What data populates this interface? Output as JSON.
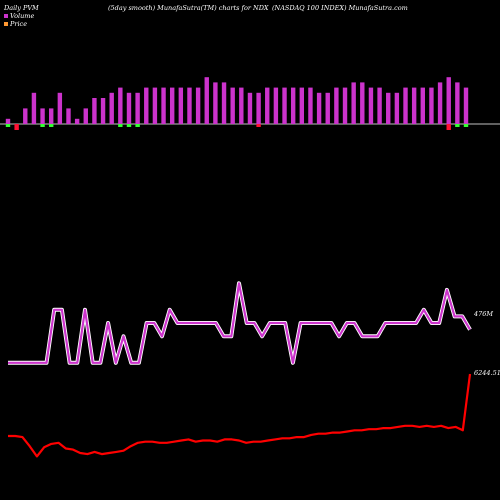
{
  "header": {
    "left": "Daily PVM",
    "middle": "(5day smooth) MunafaSutra(TM) charts for NDX",
    "right": "(NASDAQ 100  INDEX) MunafaSutra.com"
  },
  "legend": [
    {
      "label": "Volume",
      "color": "#cc33cc"
    },
    {
      "label": "Price",
      "color": "#ff9933"
    }
  ],
  "colors": {
    "background": "#000000",
    "volume_up": "#cc33cc",
    "volume_down": "#ff1133",
    "pvm_up": "#cc33cc",
    "pvm_down": "#33ff33",
    "price_line": "#ff0000",
    "zero_line": "#ffffff"
  },
  "chart_data": [
    {
      "type": "bar",
      "title": "PVM",
      "note": "5day smooth, positive bars above the zero line, negative below",
      "values_up": [
        1,
        0,
        3,
        6,
        3,
        3,
        6,
        3,
        1,
        3,
        5,
        5,
        6,
        7,
        6,
        6,
        7,
        7,
        7,
        7,
        7,
        7,
        7,
        9,
        8,
        8,
        7,
        7,
        6,
        6,
        7,
        7,
        7,
        7,
        7,
        7,
        6,
        6,
        7,
        7,
        8,
        8,
        7,
        7,
        6,
        6,
        7,
        7,
        7,
        7,
        8,
        9,
        8,
        7
      ],
      "values_down": [
        1,
        2,
        0,
        0,
        1,
        1,
        0,
        0,
        0,
        0,
        0,
        0,
        0,
        1,
        1,
        1,
        0,
        0,
        0,
        0,
        0,
        0,
        0,
        0,
        0,
        0,
        0,
        0,
        0,
        1,
        0,
        0,
        0,
        0,
        0,
        0,
        0,
        0,
        0,
        0,
        0,
        0,
        0,
        0,
        0,
        0,
        0,
        0,
        0,
        0,
        0,
        2,
        1,
        1
      ],
      "down_colors": [
        "#33ff33",
        "#ff1133",
        "#33ff33",
        "#33ff33",
        "#33ff33",
        "#33ff33",
        "#33ff33",
        "#33ff33",
        "#33ff33",
        "#33ff33",
        "#33ff33",
        "#33ff33",
        "#33ff33",
        "#33ff33",
        "#33ff33",
        "#33ff33",
        "#33ff33",
        "#33ff33",
        "#33ff33",
        "#33ff33",
        "#33ff33",
        "#33ff33",
        "#33ff33",
        "#33ff33",
        "#33ff33",
        "#33ff33",
        "#33ff33",
        "#33ff33",
        "#33ff33",
        "#ff1133",
        "#33ff33",
        "#33ff33",
        "#33ff33",
        "#33ff33",
        "#33ff33",
        "#33ff33",
        "#33ff33",
        "#33ff33",
        "#33ff33",
        "#33ff33",
        "#33ff33",
        "#33ff33",
        "#33ff33",
        "#33ff33",
        "#33ff33",
        "#33ff33",
        "#33ff33",
        "#33ff33",
        "#33ff33",
        "#33ff33",
        "#33ff33",
        "#ff1133",
        "#33ff33",
        "#33ff33"
      ]
    },
    {
      "type": "line",
      "title": "Volume",
      "end_label": "476M",
      "values": [
        1,
        1,
        1,
        1,
        1,
        1,
        5,
        5,
        1,
        1,
        5,
        1,
        1,
        4,
        1,
        3,
        1,
        1,
        4,
        4,
        3,
        5,
        4,
        4,
        4,
        4,
        4,
        4,
        3,
        3,
        7,
        4,
        4,
        3,
        4,
        4,
        4,
        1,
        4,
        4,
        4,
        4,
        4,
        3,
        4,
        4,
        3,
        3,
        3,
        4,
        4,
        4,
        4,
        4,
        5,
        4,
        4,
        6.5,
        4.5,
        4.5,
        3.5
      ],
      "ylim": [
        0,
        8
      ]
    },
    {
      "type": "line",
      "title": "Price",
      "end_label": "6244.51",
      "values": [
        5200,
        5200,
        5190,
        5110,
        5020,
        5100,
        5130,
        5140,
        5090,
        5080,
        5050,
        5040,
        5060,
        5040,
        5050,
        5060,
        5070,
        5110,
        5140,
        5150,
        5150,
        5140,
        5140,
        5150,
        5160,
        5170,
        5150,
        5160,
        5160,
        5150,
        5170,
        5170,
        5160,
        5140,
        5150,
        5150,
        5160,
        5170,
        5180,
        5180,
        5190,
        5190,
        5210,
        5220,
        5220,
        5230,
        5230,
        5240,
        5250,
        5250,
        5260,
        5260,
        5270,
        5270,
        5280,
        5290,
        5290,
        5280,
        5290,
        5280,
        5290,
        5270,
        5280,
        5250,
        6244.51
      ],
      "ylim": [
        4900,
        6400
      ]
    }
  ]
}
